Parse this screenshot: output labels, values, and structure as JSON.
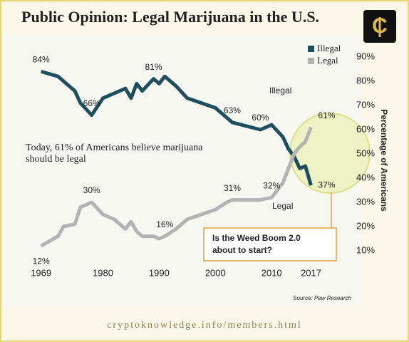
{
  "chart_data": {
    "type": "line",
    "title": "Public Opinion: Legal Marijuana in the U.S.",
    "x": [
      1969,
      1972,
      1973,
      1975,
      1976,
      1978,
      1980,
      1982,
      1984,
      1985,
      1986,
      1987,
      1989,
      1990,
      1991,
      1993,
      1995,
      2000,
      2002,
      2003,
      2008,
      2010,
      2012,
      2013,
      2014,
      2015,
      2016,
      2017
    ],
    "series": [
      {
        "name": "Illegal",
        "color": "#1f4e5f",
        "values": [
          84,
          82,
          80,
          76,
          71,
          66,
          73,
          75,
          77,
          73,
          79,
          76,
          81,
          79,
          82,
          78,
          73,
          69,
          65,
          63,
          60,
          62,
          57,
          52,
          49,
          44,
          45,
          37
        ],
        "value_labels": [
          "84%",
          null,
          null,
          null,
          null,
          "66%",
          null,
          null,
          null,
          null,
          null,
          null,
          "81%",
          null,
          null,
          null,
          null,
          null,
          null,
          "63%",
          "60%",
          null,
          null,
          null,
          null,
          null,
          null,
          "37%"
        ]
      },
      {
        "name": "Legal",
        "color": "#b3b3b3",
        "values": [
          12,
          16,
          20,
          21,
          28,
          30,
          25,
          23,
          19,
          22,
          18,
          16,
          16,
          15,
          16,
          19,
          23,
          27,
          30,
          31,
          31,
          32,
          38,
          44,
          50,
          53,
          55,
          61
        ],
        "value_labels": [
          "12%",
          null,
          null,
          null,
          null,
          "30%",
          null,
          null,
          null,
          null,
          null,
          null,
          null,
          null,
          "16%",
          null,
          null,
          null,
          null,
          "31%",
          null,
          "32%",
          null,
          null,
          null,
          null,
          null,
          "61%"
        ]
      }
    ],
    "xlim": [
      1966,
      2021
    ],
    "xticks": [
      1969,
      1980,
      1990,
      2000,
      2010,
      2017
    ],
    "ylim": [
      5,
      95
    ],
    "yticks": [
      {
        "value": 10,
        "label": "10%"
      },
      {
        "value": 20,
        "label": "20%"
      },
      {
        "value": 30,
        "label": "30%"
      },
      {
        "value": 40,
        "label": "40%"
      },
      {
        "value": 50,
        "label": "50%"
      },
      {
        "value": 60,
        "label": "60%"
      },
      {
        "value": 70,
        "label": "70%"
      },
      {
        "value": 80,
        "label": "80%"
      },
      {
        "value": 90,
        "label": "90%"
      }
    ],
    "y_axis_label": "Percentage of Americans",
    "line_labels": [
      "Illegal",
      "Legal"
    ],
    "annotation": "Today, 61% of Americans believe marijuana should be legal",
    "callout": "Is the Weed Boom 2.0 about to start?",
    "source": "Source: Pew Research",
    "footer": "cryptoknowledge.info/members.html"
  }
}
